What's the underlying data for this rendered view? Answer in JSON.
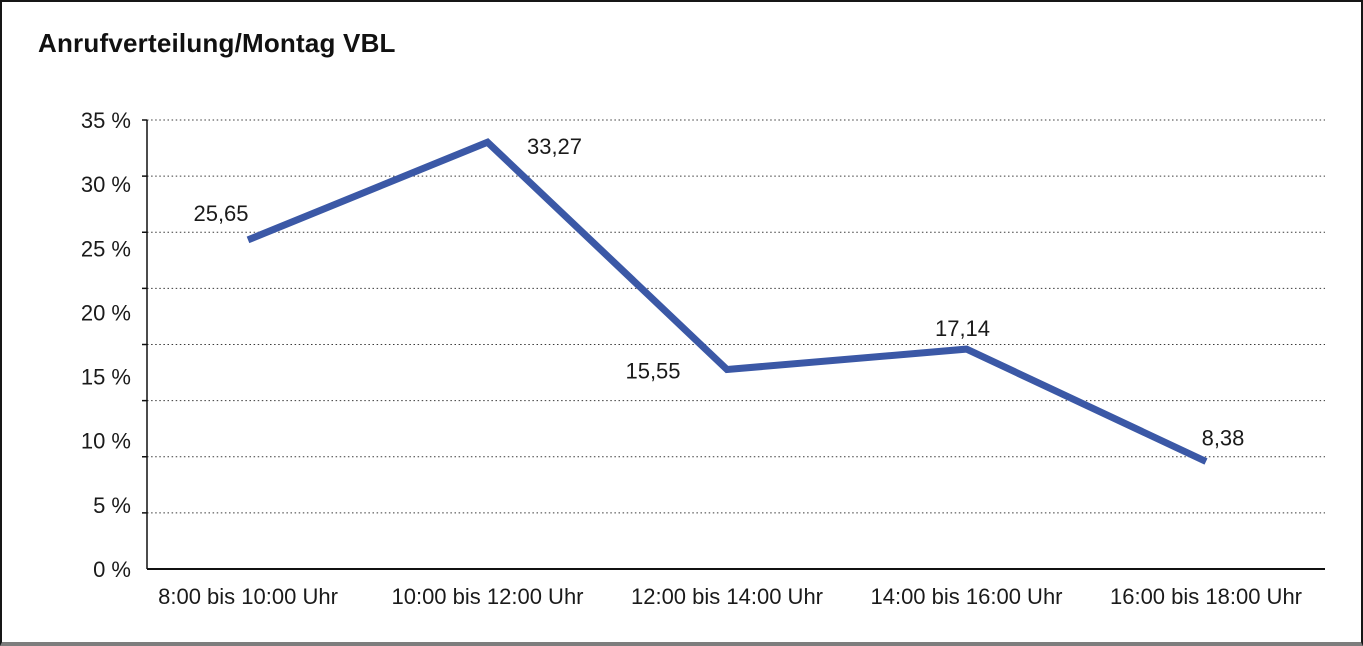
{
  "chart": {
    "title": "Anrufverteilung/Montag VBL"
  },
  "chart_data": {
    "type": "line",
    "title": "Anrufverteilung/Montag VBL",
    "categories": [
      "8:00 bis 10:00 Uhr",
      "10:00 bis 12:00 Uhr",
      "12:00 bis 14:00 Uhr",
      "14:00 bis 16:00 Uhr",
      "16:00 bis 18:00 Uhr"
    ],
    "values": [
      25.65,
      33.27,
      15.55,
      17.14,
      8.38
    ],
    "value_labels": [
      "25,65",
      "33,27",
      "15,55",
      "17,14",
      "8,38"
    ],
    "xlabel": "",
    "ylabel": "",
    "ylim": [
      0,
      35
    ],
    "ytick_step": 5,
    "ytick_labels": [
      "35 %",
      "30 %",
      "25 %",
      "20 %",
      "15 %",
      "10 %",
      "5 %",
      "0 %"
    ],
    "grid": "horizontal-dotted",
    "gridline_count": 8,
    "legend": "none"
  },
  "colors": {
    "line": "#3b58a6",
    "text": "#1a1a1a",
    "grid": "#3a3a3a",
    "axis": "#111111",
    "background": "#ffffff",
    "border": "#161616",
    "border_bottom": "#7d7d7d"
  }
}
